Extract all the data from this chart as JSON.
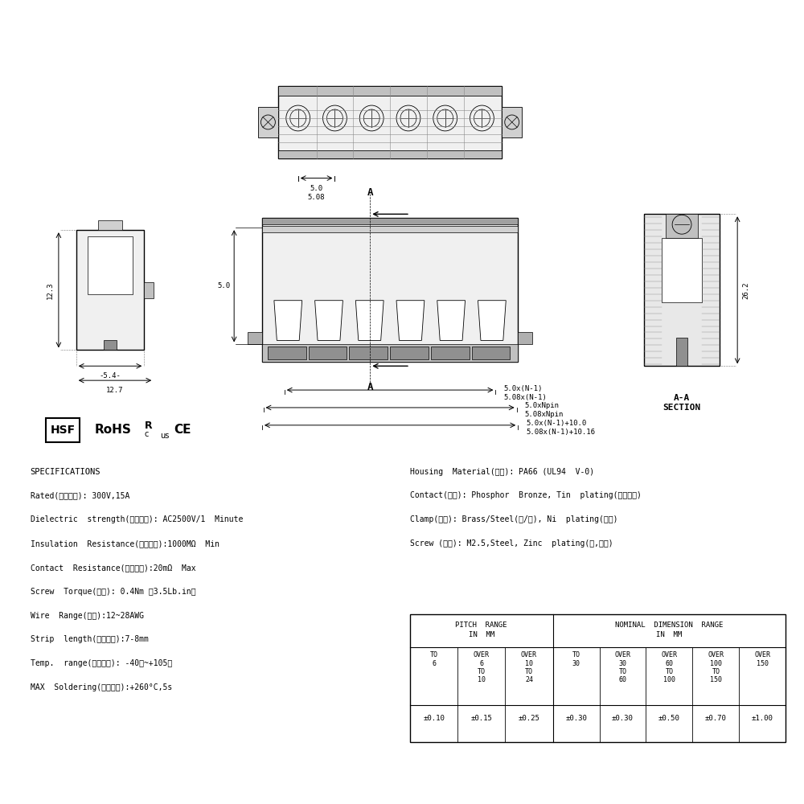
{
  "bg_color": "#ffffff",
  "line_color": "#000000",
  "specs_left": [
    "SPECIFICATIONS",
    "Rated(额定参数): 300V,15A",
    "Dielectric  strength(抗电强度): AC2500V/1  Minute",
    "Insulation  Resistance(绦缘电阳):1000MΩ  Min",
    "Contact  Resistance(接触电阳):20mΩ  Max",
    "Screw  Torque(扝矩): 0.4Nm （3.5Lb.in）",
    "Wire  Range(线径):12~28AWG",
    "Strip  length(剥线长度):7-8mm",
    "Temp.  range(操作温度): -40℃~+105℃",
    "MAX  Soldering(瞬时温度):+260°C,5s"
  ],
  "specs_right": [
    "Housing  Material(塑件): PA66 (UL94  V-0)",
    "Contact(端子): Phosphor  Bronze, Tin  plating(磷锂镀镈)",
    "Clamp(方块): Brass/Steel(锂/鐵), Ni  plating(镀镈)",
    "Screw (蝶丝): M2.5,Steel, Zinc  plating(锂,镀镨)"
  ],
  "table_pitch_header": [
    "PITCH  RANGE",
    "IN  MM"
  ],
  "table_nominal_header": [
    "NOMINAL  DIMENSION  RANGE",
    "IN  MM"
  ],
  "table_col1": [
    "TO\n6",
    "OVER\n6\nTO\n10",
    "OVER\n10\nTO\n24"
  ],
  "table_col2": [
    "TO\n30",
    "OVER\n30\nTO\n60",
    "OVER\n60\nTO\n100",
    "OVER\n100\nTO\n150",
    "OVER\n150"
  ],
  "table_values": [
    "±0.10",
    "±0.15",
    "±0.25",
    "±0.30",
    "±0.30",
    "±0.50",
    "±0.70",
    "±1.00"
  ],
  "dim_labels_top": [
    "5.0",
    "5.08"
  ],
  "dim_label_front_left": "5.0",
  "dim_labels_bottom": [
    "5.0x(N-1)",
    "5.08x(N-1)",
    "5.0xNpin",
    "5.08xNpin",
    "5.0x(N-1)+10.0",
    "5.08x(N-1)+10.16"
  ],
  "dim_12_3": "12.3",
  "dim_5_4": "5.4",
  "dim_12_7": "12.7",
  "dim_26_2": "26.2",
  "section_label": "A-A\nSECTION"
}
